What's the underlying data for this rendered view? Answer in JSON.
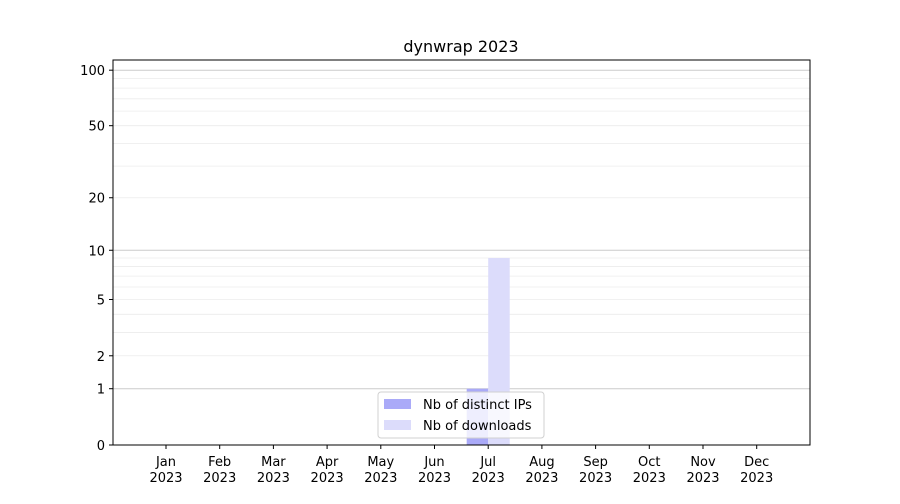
{
  "chart_data": {
    "type": "bar",
    "title": "dynwrap 2023",
    "xlabel": "",
    "ylabel": "",
    "yscale": "log(1+y)",
    "ylim": [
      0,
      113
    ],
    "yticks": [
      0,
      1,
      2,
      5,
      10,
      20,
      50,
      100
    ],
    "ytick_labels": [
      "0",
      "1",
      "2",
      "5",
      "10",
      "20",
      "50",
      "100"
    ],
    "y_major_grid": [
      1,
      10,
      100
    ],
    "y_minor_grid": [
      2,
      3,
      4,
      5,
      6,
      7,
      8,
      9,
      20,
      30,
      40,
      50,
      60,
      70,
      80,
      90
    ],
    "grid": true,
    "categories": [
      "Jan\n2023",
      "Feb\n2023",
      "Mar\n2023",
      "Apr\n2023",
      "May\n2023",
      "Jun\n2023",
      "Jul\n2023",
      "Aug\n2023",
      "Sep\n2023",
      "Oct\n2023",
      "Nov\n2023",
      "Dec\n2023"
    ],
    "series": [
      {
        "name": "Nb of distinct IPs",
        "color": "#aaaaf8",
        "values": [
          0,
          0,
          0,
          0,
          0,
          0,
          1,
          0,
          0,
          0,
          0,
          0
        ]
      },
      {
        "name": "Nb of downloads",
        "color": "#dcdcfb",
        "values": [
          0,
          0,
          0,
          0,
          0,
          0,
          9,
          0,
          0,
          0,
          0,
          0
        ]
      }
    ],
    "legend_position": "bottom-center"
  }
}
